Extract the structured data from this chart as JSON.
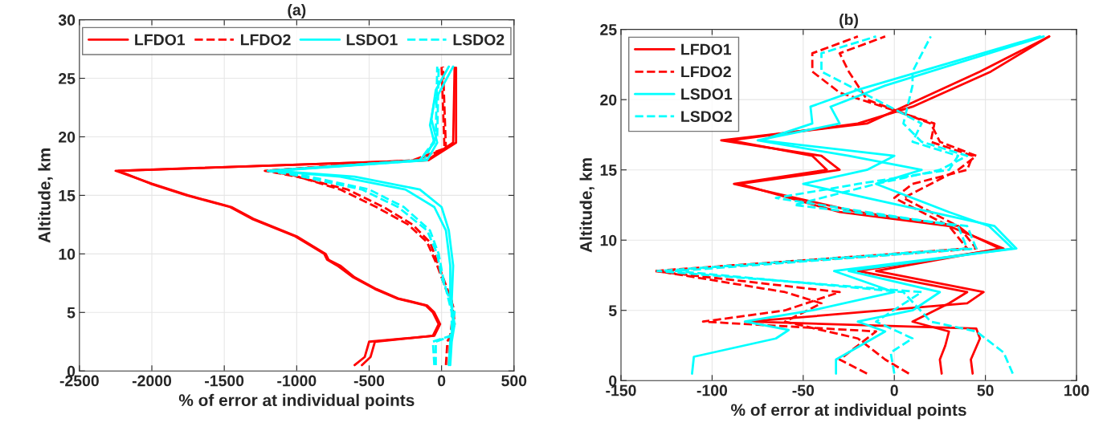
{
  "chart_data": [
    {
      "type": "line",
      "title": "(a)",
      "xlabel": "% of error at individual points",
      "ylabel": "Altitude, km",
      "xlim": [
        -2500,
        500
      ],
      "xticks": [
        -2500,
        -2000,
        -1500,
        -1000,
        -500,
        0,
        500
      ],
      "ylim": [
        0,
        30
      ],
      "yticks": [
        0,
        5,
        10,
        15,
        20,
        25,
        30
      ],
      "grid": true,
      "legend": "top",
      "series": [
        {
          "name": "LFDO1",
          "color": "#ff0000",
          "line_style": "solid",
          "x": [
            -600,
            -530,
            -500,
            -50,
            -10,
            -50,
            -100,
            -300,
            -450,
            -600,
            -700,
            -780,
            -800,
            -1000,
            -1300,
            -1450,
            -1750,
            -2000,
            -2250,
            -100,
            80,
            90
          ],
          "values": [
            0.5,
            1.2,
            2.5,
            3,
            4,
            5,
            5.6,
            6.2,
            7,
            8,
            9,
            9.5,
            10,
            11.5,
            13,
            14,
            15,
            16,
            17.1,
            18,
            19.5,
            25.9
          ]
        },
        {
          "color": "#ff0000",
          "line_style": "solid",
          "x": [
            -550,
            -490,
            -460,
            -60,
            -20,
            -60,
            -110,
            -310,
            -460,
            -610,
            -720,
            -790,
            -810,
            -1010,
            -1310,
            -1460,
            -1760,
            -2010,
            -2230,
            -90,
            100,
            100
          ],
          "values": [
            0.5,
            1.2,
            2.5,
            3,
            4,
            5,
            5.6,
            6.2,
            7,
            8,
            9,
            9.5,
            10,
            11.5,
            13,
            14,
            15,
            16,
            17.1,
            18,
            19.5,
            25.9
          ]
        },
        {
          "name": "LFDO2",
          "color": "#ff0000",
          "line_style": "dashed",
          "x": [
            30,
            40,
            90,
            80,
            40,
            -20,
            -80,
            -200,
            -400,
            -650,
            -1000,
            -1220,
            -200,
            20,
            0
          ],
          "values": [
            0.5,
            2.5,
            4,
            5.5,
            7,
            9,
            11,
            12.5,
            14,
            15.5,
            16.6,
            17.1,
            18,
            19,
            26
          ]
        },
        {
          "color": "#ff0000",
          "line_style": "dashed",
          "x": [
            50,
            60,
            80,
            70,
            30,
            -30,
            -100,
            -230,
            -450,
            -700,
            -1020,
            -1200,
            -180,
            30,
            10
          ],
          "values": [
            0.5,
            3,
            5,
            6,
            7,
            9,
            11,
            12.5,
            14,
            15.5,
            16.7,
            17.1,
            18,
            19,
            26
          ]
        },
        {
          "name": "LSDO1",
          "color": "#00ffff",
          "line_style": "solid",
          "x": [
            60,
            70,
            90,
            60,
            60,
            30,
            -50,
            -250,
            -700,
            -1180,
            -150,
            -50,
            -80,
            -50,
            80
          ],
          "values": [
            0.5,
            2.5,
            4,
            6,
            9,
            12,
            14,
            15.5,
            16.6,
            17.1,
            18,
            19.5,
            21,
            23,
            26
          ]
        },
        {
          "color": "#00ffff",
          "line_style": "solid",
          "x": [
            50,
            60,
            80,
            70,
            80,
            50,
            0,
            -150,
            -600,
            -1150,
            -100,
            -30,
            -70,
            -40,
            50
          ],
          "values": [
            0.5,
            2.5,
            4,
            6,
            9,
            12,
            14,
            15.5,
            16.6,
            17.1,
            18,
            19.5,
            21.5,
            24,
            26
          ]
        },
        {
          "name": "LSDO2",
          "color": "#00ffff",
          "line_style": "dashed",
          "x": [
            -50,
            -60,
            60,
            90,
            0,
            -30,
            -100,
            -300,
            -550,
            -1000,
            -1200,
            -150,
            -30,
            -20
          ],
          "values": [
            0.5,
            2.5,
            3,
            5,
            8,
            10,
            12,
            14,
            15.5,
            16.7,
            17.1,
            18,
            20,
            26
          ]
        },
        {
          "color": "#00ffff",
          "line_style": "dashed",
          "x": [
            -40,
            -40,
            70,
            70,
            10,
            -20,
            -80,
            -260,
            -500,
            -950,
            -1180,
            -120,
            -40,
            -30
          ],
          "values": [
            0.5,
            2.5,
            3,
            5,
            8,
            10,
            12,
            14,
            15.5,
            16.7,
            17.1,
            18,
            20,
            26
          ]
        }
      ]
    },
    {
      "type": "line",
      "title": "(b)",
      "xlabel": "% of error at individual points",
      "ylabel": "Altitude, km",
      "xlim": [
        -150,
        100
      ],
      "xticks": [
        -150,
        -100,
        -50,
        0,
        50,
        100
      ],
      "ylim": [
        0,
        25
      ],
      "yticks": [
        0,
        5,
        10,
        15,
        20,
        25
      ],
      "grid": true,
      "legend": "top left",
      "series": [
        {
          "name": "LFDO1",
          "color": "#ff0000",
          "line_style": "solid",
          "x": [
            26,
            25,
            28,
            30,
            10,
            30,
            40,
            -20,
            60,
            30,
            -30,
            -85,
            -30,
            -40,
            -95,
            -15,
            0,
            47,
            85
          ],
          "values": [
            0.5,
            1.5,
            2.5,
            3.5,
            4.2,
            5.5,
            6.3,
            7.8,
            9.4,
            11,
            12,
            14,
            15,
            16,
            17.1,
            18.3,
            19.2,
            22,
            24.5
          ]
        },
        {
          "color": "#ff0000",
          "line_style": "solid",
          "x": [
            43,
            42,
            47,
            45,
            -80,
            40,
            49,
            -10,
            58,
            40,
            35,
            -20,
            -88,
            -37,
            -45,
            -90,
            -20,
            10,
            53,
            85
          ],
          "values": [
            0.5,
            1.5,
            3,
            3.7,
            4.2,
            5.5,
            6.3,
            7.8,
            9.4,
            10.5,
            11,
            12,
            14,
            15,
            16,
            17.1,
            18.3,
            19.5,
            22,
            24.5
          ]
        },
        {
          "name": "LFDO2",
          "color": "#ff0000",
          "line_style": "dashed",
          "x": [
            -15,
            -30,
            -20,
            -10,
            -105,
            -60,
            -30,
            -132,
            40,
            30,
            0,
            10,
            40,
            43,
            20,
            22,
            -30,
            -45,
            -45,
            -20
          ],
          "values": [
            0.5,
            1.5,
            2.5,
            3.5,
            4.2,
            5,
            6.3,
            7.8,
            9.4,
            11,
            13,
            14,
            15,
            16,
            17,
            18.3,
            20.5,
            22,
            23.3,
            24.5
          ]
        },
        {
          "color": "#ff0000",
          "line_style": "dashed",
          "x": [
            8,
            -5,
            -20,
            -60,
            -40,
            -60,
            -130,
            45,
            35,
            5,
            20,
            35,
            45,
            25,
            20,
            -15,
            -25,
            -30,
            -5
          ],
          "values": [
            0.5,
            1.5,
            3,
            4.2,
            5.5,
            6.3,
            7.8,
            9.4,
            11,
            13,
            14,
            15,
            16,
            17,
            18.3,
            20,
            22,
            23.3,
            24.5
          ]
        },
        {
          "name": "LSDO1",
          "color": "#00ffff",
          "line_style": "solid",
          "x": [
            -111,
            -110,
            -65,
            -58,
            -82,
            -45,
            0,
            -33,
            67,
            55,
            20,
            -50,
            -15,
            0,
            -73,
            -45,
            -46,
            -20,
            80
          ],
          "values": [
            0.5,
            1.7,
            3,
            3.6,
            4.2,
            5,
            6.3,
            7.8,
            9.4,
            11,
            12,
            14,
            15,
            16,
            17.1,
            18.3,
            19.5,
            20.7,
            24.5
          ]
        },
        {
          "color": "#00ffff",
          "line_style": "solid",
          "x": [
            -32,
            -32,
            -5,
            -20,
            10,
            25,
            -25,
            65,
            52,
            30,
            -10,
            15,
            -25,
            -75,
            -30,
            -35,
            -5,
            82
          ],
          "values": [
            0.5,
            1.5,
            3.5,
            4.2,
            5,
            6.3,
            7.8,
            9.4,
            11,
            12,
            14,
            15,
            16,
            17.1,
            18.3,
            19.5,
            21,
            24.5
          ]
        },
        {
          "name": "LSDO2",
          "color": "#00ffff",
          "line_style": "dashed",
          "x": [
            0,
            -2,
            10,
            -10,
            15,
            -130,
            40,
            35,
            -65,
            -20,
            30,
            35,
            10,
            15,
            -10,
            -40,
            -40,
            -10
          ],
          "values": [
            0.5,
            2,
            3,
            4.2,
            6.3,
            7.8,
            9.4,
            11,
            13,
            14,
            15,
            16,
            17,
            18.3,
            20,
            22,
            23.3,
            24.5
          ]
        },
        {
          "color": "#00ffff",
          "line_style": "dashed",
          "x": [
            65,
            60,
            45,
            20,
            5,
            -120,
            45,
            40,
            -55,
            -10,
            25,
            40,
            15,
            5,
            10,
            10,
            20
          ],
          "values": [
            0.5,
            2,
            3.5,
            4.2,
            6.3,
            7.8,
            9.4,
            11,
            12.5,
            14,
            15,
            16,
            17,
            18.3,
            21,
            22,
            24.5
          ]
        }
      ]
    }
  ]
}
